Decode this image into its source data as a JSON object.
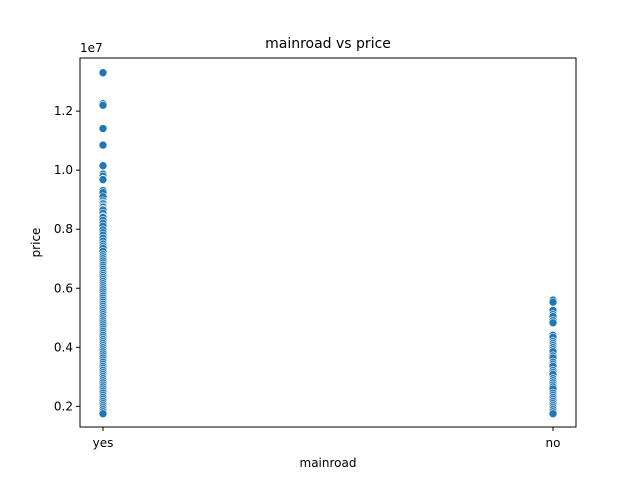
{
  "chart_data": {
    "type": "scatter",
    "title": "mainroad vs price",
    "xlabel": "mainroad",
    "ylabel": "price",
    "offset_text": "1e7",
    "categories": [
      "yes",
      "no"
    ],
    "ylim": [
      1.3,
      13.8
    ],
    "yticks": [
      "0.2",
      "0.4",
      "0.6",
      "0.8",
      "1.0",
      "1.2"
    ],
    "ytick_values": [
      2,
      4,
      6,
      8,
      10,
      12
    ],
    "y_multiplier": 1000000,
    "grid": false,
    "point_color": "#1f77b4",
    "series": [
      {
        "category": "yes",
        "values": [
          13.3,
          12.25,
          12.2,
          11.41,
          10.85,
          10.15,
          9.87,
          9.8,
          9.7,
          9.68,
          9.31,
          9.24,
          9.1,
          8.96,
          8.89,
          8.86,
          8.79,
          8.75,
          8.68,
          8.65,
          8.54,
          8.43,
          8.4,
          8.3,
          8.2,
          8.1,
          7.98,
          7.88,
          7.8,
          7.7,
          7.6,
          7.5,
          7.42,
          7.35,
          7.25,
          7.14,
          7.07,
          7.0,
          6.93,
          6.86,
          6.79,
          6.72,
          6.65,
          6.58,
          6.51,
          6.44,
          6.37,
          6.3,
          6.23,
          6.16,
          6.09,
          6.02,
          5.95,
          5.88,
          5.81,
          5.74,
          5.67,
          5.6,
          5.53,
          5.46,
          5.39,
          5.32,
          5.25,
          5.18,
          5.11,
          5.04,
          4.97,
          4.9,
          4.83,
          4.76,
          4.69,
          4.62,
          4.55,
          4.48,
          4.41,
          4.34,
          4.27,
          4.2,
          4.13,
          4.06,
          3.99,
          3.92,
          3.85,
          3.78,
          3.71,
          3.64,
          3.57,
          3.5,
          3.43,
          3.36,
          3.29,
          3.22,
          3.15,
          3.08,
          3.01,
          2.94,
          2.87,
          2.8,
          2.73,
          2.66,
          2.59,
          2.52,
          2.45,
          2.38,
          2.31,
          2.24,
          2.17,
          2.1,
          2.03,
          1.96,
          1.89,
          1.82,
          1.75
        ]
      },
      {
        "category": "no",
        "values": [
          5.6,
          5.53,
          5.25,
          5.11,
          5.04,
          4.9,
          4.83,
          4.41,
          4.34,
          4.2,
          4.13,
          4.06,
          3.99,
          3.92,
          3.85,
          3.71,
          3.64,
          3.5,
          3.43,
          3.36,
          3.22,
          3.15,
          3.08,
          2.94,
          2.87,
          2.8,
          2.73,
          2.66,
          2.59,
          2.45,
          2.38,
          2.31,
          2.24,
          2.17,
          2.1,
          2.03,
          1.96,
          1.89,
          1.82,
          1.75
        ]
      }
    ]
  }
}
